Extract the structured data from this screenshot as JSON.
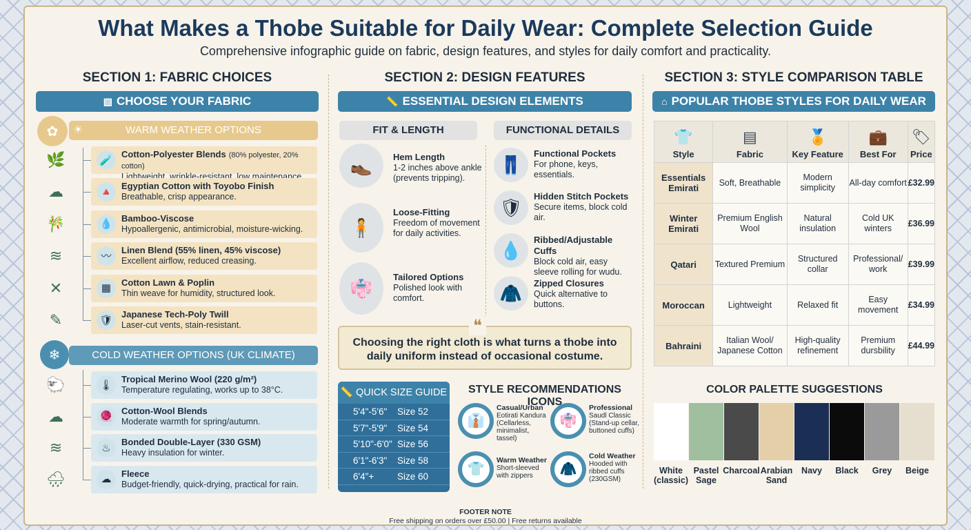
{
  "title": "What Makes a Thobe Suitable for Daily Wear: Complete Selection Guide",
  "subtitle": "Comprehensive infographic guide on fabric, design features, and styles for daily comfort and practicality.",
  "section1": {
    "heading": "SECTION 1: FABRIC CHOICES",
    "banner": "CHOOSE YOUR FABRIC",
    "warm_title": "WARM WEATHER OPTIONS",
    "cold_title": "COLD WEATHER OPTIONS (UK CLIMATE)",
    "warm": [
      {
        "name": "Cotton-Polyester Blends",
        "note": "(80% polyester, 20% cotton)",
        "desc": "Lightweight, wrinkle-resistant, low maintenance."
      },
      {
        "name": "Egyptian Cotton with Toyobo Finish",
        "note": "",
        "desc": "Breathable, crisp appearance."
      },
      {
        "name": "Bamboo-Viscose",
        "note": "",
        "desc": "Hypoallergenic, antimicrobial, moisture-wicking."
      },
      {
        "name": "Linen Blend (55% linen, 45% viscose)",
        "note": "",
        "desc": "Excellent airflow, reduced creasing."
      },
      {
        "name": "Cotton Lawn & Poplin",
        "note": "",
        "desc": "Thin weave for humidity, structured look."
      },
      {
        "name": "Japanese Tech-Poly Twill",
        "note": "",
        "desc": "Laser-cut vents, stain-resistant."
      }
    ],
    "cold": [
      {
        "name": "Tropical Merino Wool (220 g/m²)",
        "desc": "Temperature regulating, works up to 38°C."
      },
      {
        "name": "Cotton-Wool Blends",
        "desc": "Moderate warmth for spring/autumn."
      },
      {
        "name": "Bonded Double-Layer (330 GSM)",
        "desc": "Heavy insulation for winter."
      },
      {
        "name": "Fleece",
        "desc": "Budget-friendly, quick-drying, practical for rain."
      }
    ]
  },
  "section2": {
    "heading": "SECTION 2: DESIGN FEATURES",
    "banner": "ESSENTIAL DESIGN ELEMENTS",
    "fit_title": "FIT & LENGTH",
    "func_title": "FUNCTIONAL DETAILS",
    "fit": [
      {
        "name": "Hem Length",
        "desc": "1-2 inches above ankle (prevents tripping)."
      },
      {
        "name": "Loose-Fitting",
        "desc": "Freedom of movement for daily activities."
      },
      {
        "name": "Tailored Options",
        "desc": "Polished look with comfort."
      }
    ],
    "func": [
      {
        "name": "Functional Pockets",
        "desc": "For phone, keys, essentials."
      },
      {
        "name": "Hidden Stitch Pockets",
        "desc": "Secure items, block cold air."
      },
      {
        "name": "Ribbed/Adjustable Cuffs",
        "desc": "Block cold air, easy sleeve rolling for wudu."
      },
      {
        "name": "Zipped Closures",
        "desc": "Quick alternative to buttons."
      }
    ],
    "quote": "Choosing the right cloth is what turns a thobe into daily uniform instead of occasional costume.",
    "size_title": "QUICK SIZE GUIDE",
    "sizes": [
      [
        "5'4\"-5'6\"",
        "Size 52"
      ],
      [
        "5'7\"-5'9\"",
        "Size 54"
      ],
      [
        "5'10\"-6'0\"",
        "Size 56"
      ],
      [
        "6'1\"-6'3\"",
        "Size 58"
      ],
      [
        "6'4\"+",
        "Size 60"
      ]
    ],
    "rec_title": "STYLE RECOMMENDATIONS ICONS",
    "recs": [
      {
        "name": "Casual/Urban",
        "l2": "Eotirati Kandura",
        "l3": "(Cellarless, minimalist, tassel)"
      },
      {
        "name": "Professional",
        "l2": "Saudl Classic",
        "l3": "(Stand-up cellar, buttoned cuffs)"
      },
      {
        "name": "Warm Weather",
        "l2": "Short-sleeved",
        "l3": "with zippers"
      },
      {
        "name": "Cold Weather",
        "l2": "Hooded with",
        "l3": "ribbed cuffs (230GSM)"
      }
    ]
  },
  "section3": {
    "heading": "SECTION 3: STYLE COMPARISON TABLE",
    "banner": "POPULAR THOBE STYLES FOR DAILY WEAR",
    "columns": [
      "Style",
      "Fabric",
      "Key Feature",
      "Best For",
      "Price"
    ],
    "rows": [
      [
        "Essentials Emirati",
        "Soft, Breathable",
        "Modern simplicity",
        "All-day comfort",
        "£32.99"
      ],
      [
        "Winter Emirati",
        "Premium English Wool",
        "Natural insulation",
        "Cold UK winters",
        "£36.99"
      ],
      [
        "Qatari",
        "Textured Premium",
        "Structured collar",
        "Professional/ work",
        "£39.99"
      ],
      [
        "Moroccan",
        "Lightweight",
        "Relaxed fit",
        "Easy movement",
        "£34.99"
      ],
      [
        "Bahraini",
        "Italian Wool/ Japanese Cotton",
        "High-quality refinement",
        "Premium dursbility",
        "£44.99"
      ]
    ],
    "palette_title": "COLOR PALETTE SUGGESTIONS",
    "palette": [
      {
        "name": "White (classic)",
        "color": "#ffffff"
      },
      {
        "name": "Pastel Sage",
        "color": "#9fbf9f"
      },
      {
        "name": "Charcoal",
        "color": "#4a4a4a"
      },
      {
        "name": "Arabian Sand",
        "color": "#e5cfa8"
      },
      {
        "name": "Navy",
        "color": "#1b2f55"
      },
      {
        "name": "Black",
        "color": "#0b0b0b"
      },
      {
        "name": "Grey",
        "color": "#9a9a9a"
      },
      {
        "name": "Beige",
        "color": "#e6dfcf"
      }
    ]
  },
  "footer": {
    "label": "FOOTER NOTE",
    "text": "Free shipping on orders over £50.00 | Free returns available"
  }
}
